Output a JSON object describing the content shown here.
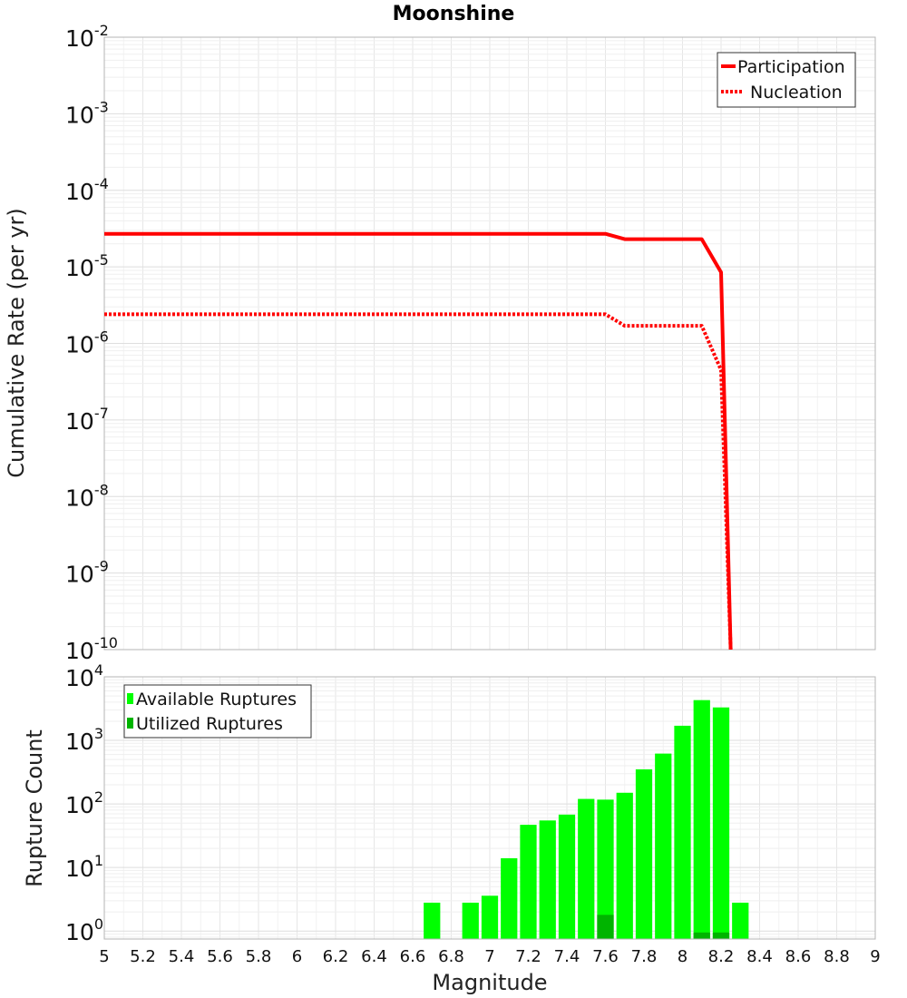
{
  "chart_data": [
    {
      "type": "line",
      "title": "Moonshine",
      "ylabel": "Cumulative Rate (per yr)",
      "xlabel": "",
      "xlim": [
        5,
        9
      ],
      "ylim": [
        1e-10,
        0.01
      ],
      "yscale": "log",
      "y_tick_exponents": [
        -2,
        -3,
        -4,
        -5,
        -6,
        -7,
        -8,
        -9,
        -10
      ],
      "legend_position": "top-right",
      "series": [
        {
          "name": "Participation",
          "style": "solid",
          "color": "#ff0000",
          "x": [
            5.0,
            7.6,
            7.7,
            8.1,
            8.2,
            8.25
          ],
          "y": [
            2.7e-05,
            2.7e-05,
            2.3e-05,
            2.3e-05,
            8.5e-06,
            1e-10
          ]
        },
        {
          "name": "Nucleation",
          "style": "dotted",
          "color": "#ff0000",
          "x": [
            5.0,
            7.6,
            7.7,
            8.1,
            8.2,
            8.25
          ],
          "y": [
            2.4e-06,
            2.4e-06,
            1.7e-06,
            1.7e-06,
            4.5e-07,
            1e-10
          ]
        }
      ]
    },
    {
      "type": "bar",
      "ylabel": "Rupture Count",
      "xlabel": "Magnitude",
      "xlim": [
        5,
        9
      ],
      "ylim": [
        0.75,
        10000
      ],
      "yscale": "log",
      "y_tick_exponents": [
        0,
        1,
        2,
        3,
        4
      ],
      "x_ticks": [
        "5",
        "5.2",
        "5.4",
        "5.6",
        "5.8",
        "6",
        "6.2",
        "6.4",
        "6.6",
        "6.8",
        "7",
        "7.2",
        "7.4",
        "7.6",
        "7.8",
        "8",
        "8.2",
        "8.4",
        "8.6",
        "8.8",
        "9"
      ],
      "legend_position": "top-left",
      "bin_width": 0.1,
      "series": [
        {
          "name": "Available Ruptures",
          "color": "#00ff00",
          "x": [
            6.7,
            6.9,
            7.0,
            7.1,
            7.2,
            7.3,
            7.4,
            7.5,
            7.6,
            7.7,
            7.8,
            7.9,
            8.0,
            8.1,
            8.2,
            8.3
          ],
          "values": [
            2.8,
            2.8,
            3.6,
            14,
            47,
            55,
            68,
            120,
            117,
            150,
            350,
            620,
            1700,
            4300,
            3300,
            2.8
          ]
        },
        {
          "name": "Utilized Ruptures",
          "color": "#00b400",
          "x": [
            7.6,
            8.1,
            8.2
          ],
          "values": [
            1.8,
            0.95,
            0.95
          ]
        }
      ]
    }
  ]
}
